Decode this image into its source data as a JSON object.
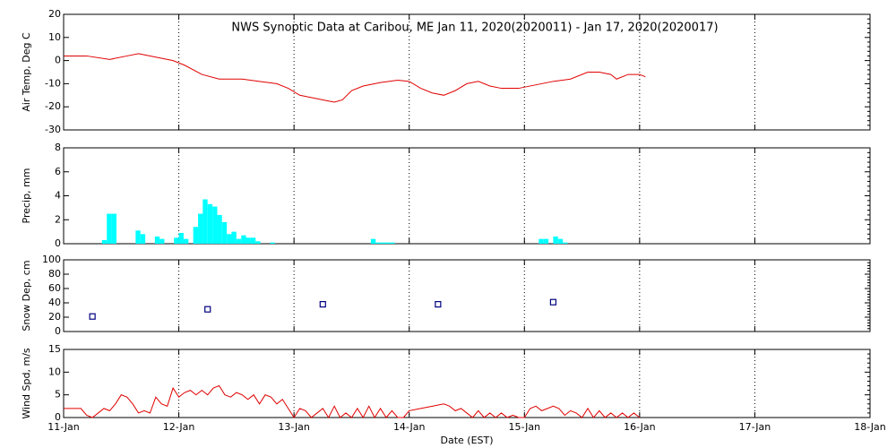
{
  "chart_data": [
    {
      "type": "line",
      "title": "NWS Synoptic Data at Caribou, ME   Jan 11, 2020(2020011) - Jan 17, 2020(2020017)",
      "ylabel": "Air Temp, Deg C",
      "color": "#e00000",
      "ylim": [
        -30,
        20
      ],
      "yticks": [
        -30,
        -20,
        -10,
        0,
        10,
        20
      ],
      "x": [
        11.0,
        11.2,
        11.4,
        11.55,
        11.65,
        11.8,
        11.95,
        12.05,
        12.2,
        12.35,
        12.55,
        12.7,
        12.85,
        12.95,
        13.05,
        13.15,
        13.25,
        13.35,
        13.42,
        13.5,
        13.6,
        13.75,
        13.9,
        14.0,
        14.1,
        14.2,
        14.3,
        14.4,
        14.5,
        14.6,
        14.7,
        14.8,
        14.95,
        15.1,
        15.25,
        15.4,
        15.55,
        15.65,
        15.75,
        15.8,
        15.9,
        16.0,
        16.05
      ],
      "values": [
        2,
        2,
        0.5,
        2,
        3,
        1.5,
        0,
        -2,
        -6,
        -8,
        -8,
        -9,
        -10,
        -12,
        -15,
        -16,
        -17,
        -18,
        -17,
        -13,
        -11,
        -9.5,
        -8.5,
        -9,
        -12,
        -14,
        -15,
        -13,
        -10,
        -9,
        -11,
        -12,
        -12,
        -10.5,
        -9,
        -8,
        -5,
        -5,
        -6,
        -8,
        -6,
        -6,
        -7
      ]
    },
    {
      "type": "bar",
      "ylabel": "Precip, mm",
      "color": "#00ffff",
      "ylim": [
        0,
        8
      ],
      "yticks": [
        0,
        2,
        4,
        6,
        8
      ],
      "x": [
        11.333,
        11.375,
        11.417,
        11.625,
        11.667,
        11.792,
        11.833,
        11.958,
        12.0,
        12.042,
        12.125,
        12.167,
        12.208,
        12.25,
        12.292,
        12.333,
        12.375,
        12.417,
        12.458,
        12.5,
        12.542,
        12.583,
        12.625,
        12.667,
        12.792,
        13.667,
        13.708,
        13.75,
        13.792,
        13.833,
        15.125,
        15.167,
        15.25,
        15.292,
        15.333
      ],
      "values": [
        0.3,
        2.5,
        2.5,
        1.1,
        0.8,
        0.6,
        0.4,
        0.5,
        0.9,
        0.4,
        1.4,
        2.5,
        3.7,
        3.3,
        3.1,
        2.4,
        1.8,
        0.8,
        1.0,
        0.4,
        0.7,
        0.5,
        0.5,
        0.2,
        0.1,
        0.4,
        0.1,
        0.1,
        0.1,
        0.1,
        0.4,
        0.4,
        0.6,
        0.4,
        0.1
      ]
    },
    {
      "type": "scatter",
      "ylabel": "Snow Dep, cm",
      "color": "#000080",
      "ylim": [
        0,
        100
      ],
      "yticks": [
        0,
        20,
        40,
        60,
        80,
        100
      ],
      "x": [
        11.25,
        12.25,
        13.25,
        14.25,
        15.25
      ],
      "values": [
        21,
        31,
        38,
        38,
        41
      ]
    },
    {
      "type": "line",
      "ylabel": "Wind Spd, m/s",
      "xlabel": "Date (EST)",
      "color": "#e00000",
      "ylim": [
        0,
        15
      ],
      "yticks": [
        0,
        5,
        10,
        15
      ],
      "xlim": [
        11,
        18
      ],
      "xticks": [
        {
          "value": 11,
          "label": "11-Jan"
        },
        {
          "value": 12,
          "label": "12-Jan"
        },
        {
          "value": 13,
          "label": "13-Jan"
        },
        {
          "value": 14,
          "label": "14-Jan"
        },
        {
          "value": 15,
          "label": "15-Jan"
        },
        {
          "value": 16,
          "label": "16-Jan"
        },
        {
          "value": 17,
          "label": "17-Jan"
        },
        {
          "value": 18,
          "label": "18-Jan"
        }
      ],
      "x": [
        11.0,
        11.05,
        11.15,
        11.2,
        11.25,
        11.3,
        11.35,
        11.4,
        11.45,
        11.5,
        11.55,
        11.6,
        11.65,
        11.7,
        11.75,
        11.8,
        11.85,
        11.9,
        11.95,
        12.0,
        12.05,
        12.1,
        12.15,
        12.2,
        12.25,
        12.3,
        12.35,
        12.4,
        12.45,
        12.5,
        12.55,
        12.6,
        12.65,
        12.7,
        12.75,
        12.8,
        12.85,
        12.9,
        12.95,
        13.0,
        13.05,
        13.1,
        13.15,
        13.2,
        13.25,
        13.3,
        13.35,
        13.4,
        13.45,
        13.5,
        13.55,
        13.6,
        13.65,
        13.7,
        13.75,
        13.8,
        13.85,
        13.9,
        13.95,
        14.0,
        14.1,
        14.2,
        14.3,
        14.35,
        14.4,
        14.45,
        14.5,
        14.55,
        14.6,
        14.65,
        14.7,
        14.75,
        14.8,
        14.85,
        14.9,
        14.95,
        15.0,
        15.05,
        15.1,
        15.15,
        15.2,
        15.25,
        15.3,
        15.35,
        15.4,
        15.45,
        15.5,
        15.55,
        15.6,
        15.65,
        15.7,
        15.75,
        15.8,
        15.85,
        15.9,
        15.95,
        16.0
      ],
      "values": [
        2,
        2,
        2,
        0.5,
        0,
        1,
        2,
        1.5,
        3,
        5,
        4.5,
        3,
        1,
        1.5,
        1,
        4.5,
        3,
        2.5,
        6.5,
        4.5,
        5.5,
        6,
        5,
        6,
        5,
        6.5,
        7,
        5,
        4.5,
        5.5,
        5,
        4,
        5,
        3,
        5,
        4.5,
        3,
        4,
        2,
        0,
        2,
        1.5,
        0,
        1,
        2,
        0,
        2.5,
        0,
        1,
        0,
        2,
        0,
        2.5,
        0,
        2,
        0,
        1.5,
        0,
        0,
        1.5,
        2,
        2.5,
        3,
        2.5,
        1.5,
        2,
        1,
        0,
        1.5,
        0,
        1,
        0,
        1,
        0,
        0.5,
        0,
        0,
        2,
        2.5,
        1.5,
        2,
        2.5,
        2,
        0.5,
        1.5,
        1,
        0,
        2,
        0,
        1.5,
        0,
        1,
        0,
        1,
        0,
        1,
        0
      ]
    }
  ]
}
